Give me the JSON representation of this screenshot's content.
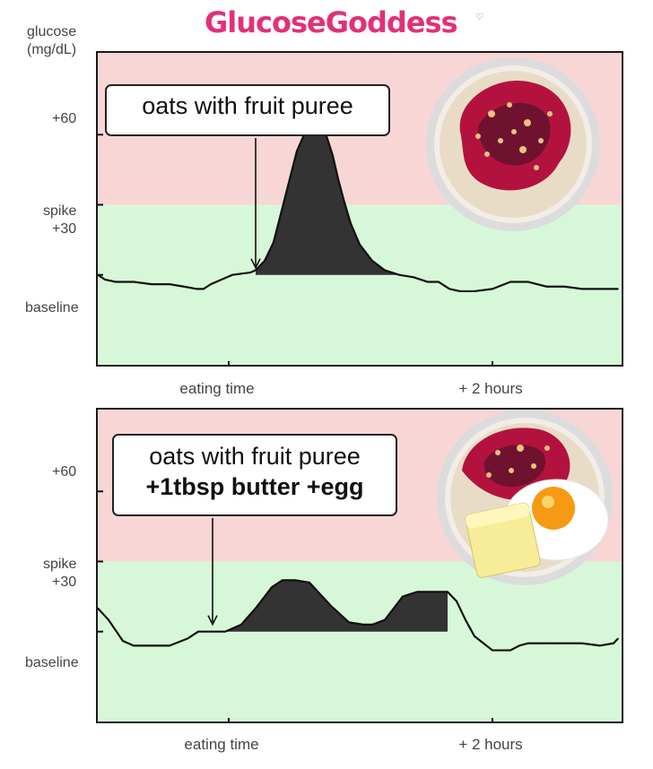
{
  "brand": {
    "name": "GlucoseGoddess"
  },
  "axis": {
    "ylabel_line1": "glucose",
    "ylabel_line2": "(mg/dL)",
    "ticks": [
      "+60",
      "spike",
      "+30",
      "baseline"
    ],
    "xticks": [
      "eating time",
      "+ 2 hours"
    ]
  },
  "colors": {
    "spike_zone": "#f9d6d6",
    "safe_zone": "#d7f8d8",
    "fill": "#333333",
    "brand": "#e2307a"
  },
  "chart_data": [
    {
      "type": "area",
      "title": "",
      "annotation": "oats with fruit puree",
      "xlabel": "",
      "ylabel": "glucose (mg/dL)",
      "x_ticks": [
        "eating time",
        "+ 2 hours"
      ],
      "y_ticks": [
        "+60",
        "spike +30",
        "baseline"
      ],
      "ylim": [
        -40,
        95
      ],
      "spike_threshold": 30,
      "x": [
        0,
        8,
        20,
        40,
        60,
        80,
        96,
        110,
        118,
        126,
        150,
        170,
        176,
        186,
        196,
        206,
        214,
        222,
        230,
        240,
        252,
        262,
        268,
        275,
        282,
        292,
        306,
        320,
        336,
        352,
        368,
        380,
        392,
        404,
        410,
        420,
        440,
        460,
        480,
        500,
        520,
        540,
        560,
        580
      ],
      "y": [
        0,
        -2,
        -3,
        -3,
        -4,
        -4,
        -5,
        -6,
        -6,
        -4,
        0,
        1,
        2,
        6,
        14,
        29,
        41,
        53,
        60,
        64,
        63,
        51,
        41,
        31,
        22,
        13,
        6,
        2,
        0,
        -1,
        -3,
        -3,
        -6,
        -7,
        -7,
        -7,
        -6,
        -3,
        -3,
        -5,
        -5,
        -6,
        -6,
        -6
      ],
      "fill_range": [
        176,
        400
      ],
      "baseline_value": 0
    },
    {
      "type": "area",
      "title": "",
      "annotation_line1": "oats with fruit puree",
      "annotation_line2": "+1tbsp butter +egg",
      "xlabel": "",
      "ylabel": "glucose (mg/dL)",
      "x_ticks": [
        "eating time",
        "+ 2 hours"
      ],
      "y_ticks": [
        "+60",
        "spike +30",
        "baseline"
      ],
      "ylim": [
        -40,
        95
      ],
      "spike_threshold": 30,
      "x": [
        0,
        12,
        28,
        40,
        60,
        80,
        100,
        112,
        126,
        142,
        160,
        176,
        194,
        206,
        220,
        236,
        248,
        260,
        280,
        296,
        306,
        320,
        340,
        356,
        368,
        380,
        390,
        390,
        400,
        410,
        420,
        430,
        440,
        460,
        470,
        480,
        496,
        510,
        540,
        560,
        575,
        580
      ],
      "y": [
        10,
        5,
        -4,
        -6,
        -6,
        -6,
        -3,
        0,
        0,
        0,
        3,
        10,
        19,
        22,
        22,
        21,
        16,
        11,
        4,
        3,
        3,
        5,
        15,
        17,
        17,
        17,
        17,
        17,
        13,
        5,
        -2,
        -5,
        -8,
        -8,
        -6,
        -5,
        -5,
        -5,
        -5,
        -6,
        -5,
        -3
      ],
      "fill_range": [
        142,
        390
      ],
      "baseline_value": 0
    }
  ]
}
